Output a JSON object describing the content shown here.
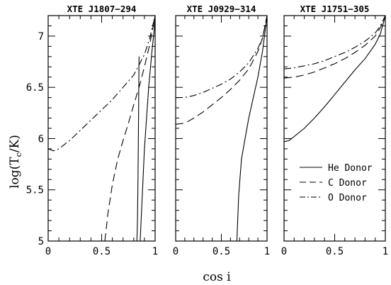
{
  "chart_data": {
    "type": "line",
    "ylabel_main": "log(T",
    "ylabel_sub": "c",
    "ylabel_end": "/K)",
    "xlabel": "cos i",
    "xlim": [
      0,
      1
    ],
    "ylim": [
      5,
      7.2
    ],
    "legend_placement": "lower-right of third panel",
    "legend": [
      {
        "label": "He Donor",
        "style": "solid"
      },
      {
        "label": "C Donor",
        "style": "dashed"
      },
      {
        "label": "O Donor",
        "style": "dashdot"
      }
    ],
    "yticks": [
      {
        "value": 5,
        "label": "5"
      },
      {
        "value": 5.5,
        "label": "5.5"
      },
      {
        "value": 6,
        "label": "6"
      },
      {
        "value": 6.5,
        "label": "6.5"
      },
      {
        "value": 7,
        "label": "7"
      }
    ],
    "panels": [
      {
        "title": "XTE J1807−294",
        "xticks": [
          {
            "value": 0,
            "label": "0"
          },
          {
            "value": 0.5,
            "label": "0.5"
          },
          {
            "value": 1,
            "label": "1"
          }
        ],
        "series": [
          {
            "style": "solid",
            "x": [
              0.86,
              0.9,
              0.94,
              0.97,
              0.99,
              1.0
            ],
            "y": [
              5.0,
              5.9,
              6.5,
              6.85,
              7.05,
              7.2
            ]
          },
          {
            "style": "solid",
            "x": [
              0.83,
              0.835,
              0.84,
              0.845,
              0.85
            ],
            "y": [
              5.0,
              5.2,
              5.6,
              6.2,
              6.8
            ]
          },
          {
            "style": "dashed",
            "x": [
              0.53,
              0.56,
              0.6,
              0.65,
              0.7,
              0.75,
              0.8,
              0.85,
              0.9,
              0.95,
              1.0
            ],
            "y": [
              5.0,
              5.28,
              5.55,
              5.8,
              5.98,
              6.15,
              6.33,
              6.5,
              6.7,
              6.92,
              7.2
            ]
          },
          {
            "style": "dashdot",
            "x": [
              0.0,
              0.05,
              0.1,
              0.2,
              0.3,
              0.4,
              0.5,
              0.6,
              0.7,
              0.8,
              0.9,
              0.95,
              1.0
            ],
            "y": [
              5.9,
              5.88,
              5.9,
              5.98,
              6.08,
              6.18,
              6.28,
              6.38,
              6.5,
              6.62,
              6.82,
              6.98,
              7.2
            ]
          }
        ]
      },
      {
        "title": "XTE J0929−314",
        "xticks": [
          {
            "value": 0,
            "label": "0"
          },
          {
            "value": 0.5,
            "label": "0.5"
          },
          {
            "value": 1,
            "label": "1"
          }
        ],
        "series": [
          {
            "style": "solid",
            "x": [
              0.67,
              0.69,
              0.72,
              0.76,
              0.8,
              0.85,
              0.9,
              0.95,
              1.0
            ],
            "y": [
              5.0,
              5.45,
              5.8,
              6.0,
              6.2,
              6.4,
              6.6,
              6.85,
              7.2
            ]
          },
          {
            "style": "dashed",
            "x": [
              0.0,
              0.1,
              0.2,
              0.3,
              0.4,
              0.5,
              0.6,
              0.7,
              0.8,
              0.9,
              0.95,
              1.0
            ],
            "y": [
              6.14,
              6.15,
              6.2,
              6.26,
              6.33,
              6.4,
              6.48,
              6.57,
              6.68,
              6.85,
              6.98,
              7.2
            ]
          },
          {
            "style": "dashdot",
            "x": [
              0.0,
              0.1,
              0.2,
              0.3,
              0.4,
              0.5,
              0.6,
              0.7,
              0.8,
              0.9,
              0.95,
              1.0
            ],
            "y": [
              6.4,
              6.4,
              6.42,
              6.45,
              6.49,
              6.53,
              6.58,
              6.65,
              6.74,
              6.88,
              6.98,
              7.2
            ]
          }
        ]
      },
      {
        "title": "XTE J1751−305",
        "xticks": [
          {
            "value": 0,
            "label": "0"
          },
          {
            "value": 0.5,
            "label": "0.5"
          },
          {
            "value": 1,
            "label": "1"
          }
        ],
        "series": [
          {
            "style": "solid",
            "x": [
              0.0,
              0.05,
              0.1,
              0.2,
              0.3,
              0.4,
              0.5,
              0.6,
              0.7,
              0.8,
              0.9,
              0.95,
              1.0
            ],
            "y": [
              5.97,
              5.98,
              6.02,
              6.1,
              6.2,
              6.31,
              6.43,
              6.55,
              6.67,
              6.78,
              6.92,
              7.02,
              7.2
            ]
          },
          {
            "style": "dashed",
            "x": [
              0.0,
              0.1,
              0.2,
              0.3,
              0.4,
              0.5,
              0.6,
              0.7,
              0.8,
              0.9,
              0.95,
              1.0
            ],
            "y": [
              6.59,
              6.6,
              6.62,
              6.65,
              6.69,
              6.73,
              6.78,
              6.84,
              6.91,
              7.0,
              7.08,
              7.2
            ]
          },
          {
            "style": "dashdot",
            "x": [
              0.0,
              0.1,
              0.2,
              0.3,
              0.4,
              0.5,
              0.6,
              0.7,
              0.8,
              0.9,
              0.95,
              1.0
            ],
            "y": [
              6.68,
              6.69,
              6.71,
              6.73,
              6.76,
              6.8,
              6.84,
              6.89,
              6.95,
              7.03,
              7.1,
              7.2
            ]
          }
        ]
      }
    ]
  }
}
